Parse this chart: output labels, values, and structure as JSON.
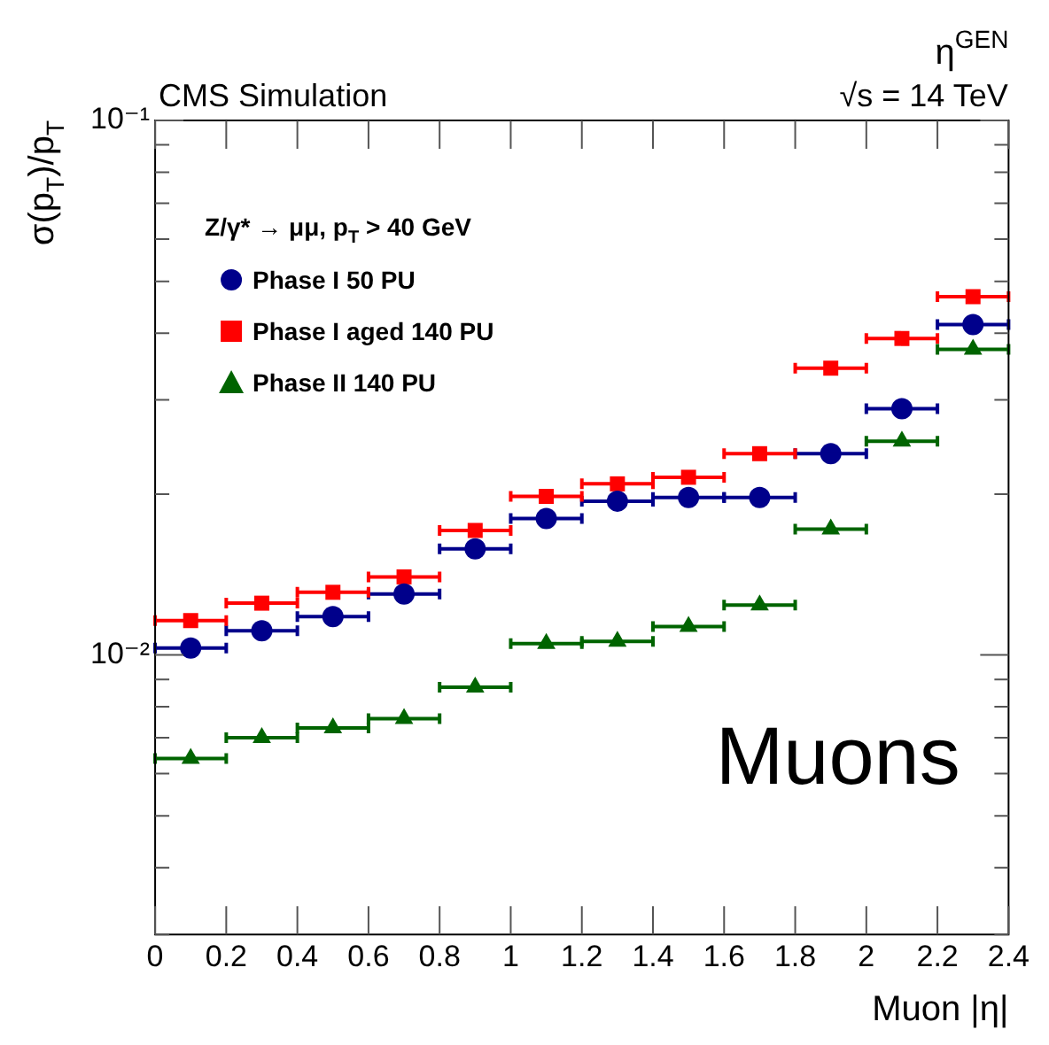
{
  "chart_data": {
    "type": "scatter",
    "xlabel": "Muon |η|",
    "ylabel": "σ(p$_{T}$)/p$_{T}$",
    "legend_title": "Z/γ* → μμ, p$_{T}$ > 40 GeV",
    "annotations": [
      "CMS Simulation",
      "√s = 14 TeV",
      "η$^{GEN}$",
      "Muons"
    ],
    "x": [
      0.1,
      0.3,
      0.5,
      0.7,
      0.9,
      1.1,
      1.3,
      1.5,
      1.7,
      1.9,
      2.1,
      2.3
    ],
    "series": [
      {
        "name": "Phase I 50 PU",
        "color": "#00008b",
        "marker": "circle",
        "values": [
          0.0103,
          0.0111,
          0.0118,
          0.013,
          0.0158,
          0.018,
          0.0194,
          0.0197,
          0.0197,
          0.0238,
          0.0289,
          0.0415
        ],
        "xerrors": [
          0.1,
          0.1,
          0.1,
          0.1,
          0.1,
          0.1,
          0.1,
          0.1,
          0.1,
          0.1,
          0.1,
          0.1
        ]
      },
      {
        "name": "Phase I aged 140 PU",
        "color": "#ff0000",
        "marker": "square",
        "values": [
          0.0116,
          0.0125,
          0.0131,
          0.014,
          0.0171,
          0.0198,
          0.0209,
          0.0215,
          0.0238,
          0.0344,
          0.0391,
          0.0468
        ],
        "xerrors": [
          0.1,
          0.1,
          0.1,
          0.1,
          0.1,
          0.1,
          0.1,
          0.1,
          0.1,
          0.1,
          0.1,
          0.1
        ]
      },
      {
        "name": "Phase II 140 PU",
        "color": "#006400",
        "marker": "triangle",
        "values": [
          0.0064,
          0.007,
          0.0073,
          0.0076,
          0.0087,
          0.0105,
          0.0106,
          0.0113,
          0.0124,
          0.0172,
          0.0251,
          0.0373
        ],
        "xerrors": [
          0.1,
          0.1,
          0.1,
          0.1,
          0.1,
          0.1,
          0.1,
          0.1,
          0.1,
          0.1,
          0.1,
          0.1
        ]
      }
    ],
    "xlim": [
      0,
      2.4
    ],
    "xticks": [
      0,
      0.2,
      0.4,
      0.6,
      0.8,
      1,
      1.2,
      1.4,
      1.6,
      1.8,
      2,
      2.2,
      2.4
    ],
    "ylim": [
      0.003,
      0.1
    ],
    "log": "y",
    "yticks": [
      {
        "value": 0.003,
        "label": null
      },
      {
        "value": 0.004,
        "label": null
      },
      {
        "value": 0.005,
        "label": null
      },
      {
        "value": 0.006,
        "label": null
      },
      {
        "value": 0.007,
        "label": null
      },
      {
        "value": 0.008,
        "label": null
      },
      {
        "value": 0.009,
        "label": null
      },
      {
        "value": 0.01,
        "label": "10⁻²"
      },
      {
        "value": 0.02,
        "label": null
      },
      {
        "value": 0.03,
        "label": null
      },
      {
        "value": 0.04,
        "label": null
      },
      {
        "value": 0.05,
        "label": null
      },
      {
        "value": 0.06,
        "label": null
      },
      {
        "value": 0.07,
        "label": null
      },
      {
        "value": 0.08,
        "label": null
      },
      {
        "value": 0.09,
        "label": null
      },
      {
        "value": 0.1,
        "label": "10⁻¹"
      }
    ],
    "grid": false,
    "legend": "top left"
  }
}
